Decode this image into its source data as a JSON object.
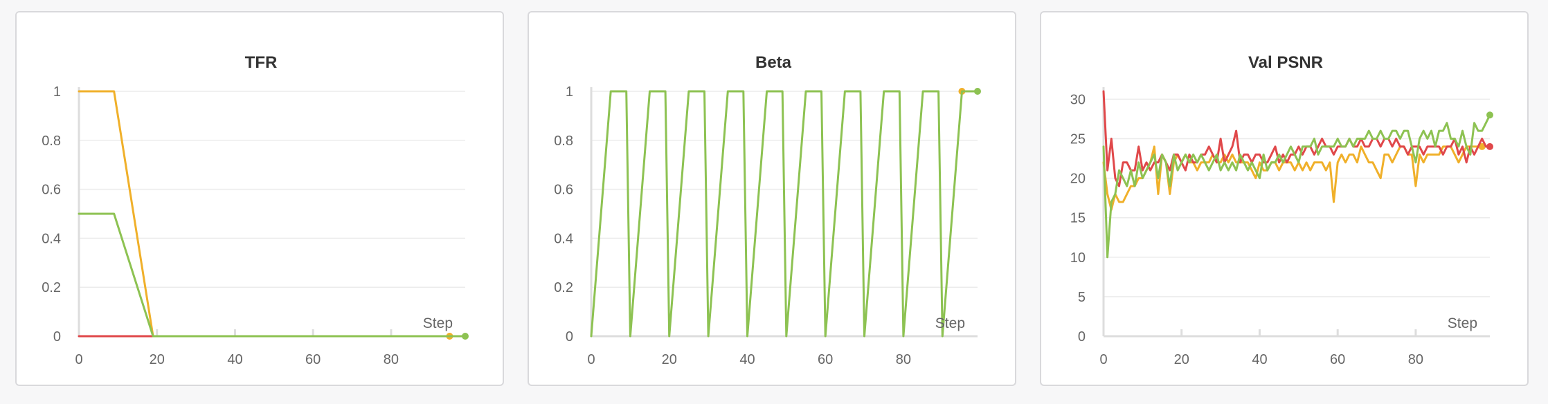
{
  "colors": {
    "red": "#e0484a",
    "orange": "#f0b02a",
    "green": "#8dc252"
  },
  "chart_data": [
    {
      "type": "line",
      "title": "TFR",
      "xlabel": "Step",
      "ylabel": "",
      "xlim": [
        0,
        99
      ],
      "ylim": [
        0,
        1
      ],
      "xticks": [
        "0",
        "20",
        "40",
        "60",
        "80"
      ],
      "yticks": [
        "0",
        "0.2",
        "0.4",
        "0.6",
        "0.8",
        "1"
      ],
      "grid": true,
      "series": [
        {
          "color": "#e0484a",
          "x": [
            0,
            99
          ],
          "y": [
            0,
            0
          ]
        },
        {
          "color": "#f0b02a",
          "x": [
            0,
            9,
            19,
            95
          ],
          "y": [
            1,
            1,
            0,
            0
          ],
          "end_marker": true
        },
        {
          "color": "#8dc252",
          "x": [
            0,
            9,
            19,
            99
          ],
          "y": [
            0.5,
            0.5,
            0,
            0
          ],
          "end_marker": true
        }
      ]
    },
    {
      "type": "line",
      "title": "Beta",
      "xlabel": "Step",
      "ylabel": "",
      "xlim": [
        0,
        99
      ],
      "ylim": [
        0,
        1
      ],
      "xticks": [
        "0",
        "20",
        "40",
        "60",
        "80"
      ],
      "yticks": [
        "0",
        "0.2",
        "0.4",
        "0.6",
        "0.8",
        "1"
      ],
      "grid": true,
      "series": [
        {
          "color": "#f0b02a",
          "x": [
            95
          ],
          "y": [
            1
          ],
          "end_marker": true
        },
        {
          "color": "#8dc252",
          "x": [
            0,
            5,
            9,
            10,
            15,
            19,
            20,
            25,
            29,
            30,
            35,
            39,
            40,
            45,
            49,
            50,
            55,
            59,
            60,
            65,
            69,
            70,
            75,
            79,
            80,
            85,
            89,
            90,
            95,
            99
          ],
          "y": [
            0,
            1,
            1,
            0,
            1,
            1,
            0,
            1,
            1,
            0,
            1,
            1,
            0,
            1,
            1,
            0,
            1,
            1,
            0,
            1,
            1,
            0,
            1,
            1,
            0,
            1,
            1,
            0,
            1,
            1
          ],
          "end_marker": true
        }
      ]
    },
    {
      "type": "line",
      "title": "Val PSNR",
      "xlabel": "Step",
      "ylabel": "",
      "xlim": [
        0,
        99
      ],
      "ylim": [
        0,
        31
      ],
      "xticks": [
        "0",
        "20",
        "40",
        "60",
        "80"
      ],
      "yticks": [
        "0",
        "5",
        "10",
        "15",
        "20",
        "25",
        "30"
      ],
      "grid": true,
      "series": [
        {
          "color": "#f0b02a",
          "x": [
            0,
            1,
            2,
            3,
            4,
            5,
            6,
            7,
            8,
            9,
            10,
            11,
            12,
            13,
            14,
            15,
            16,
            17,
            18,
            19,
            20,
            21,
            22,
            23,
            24,
            25,
            26,
            27,
            28,
            29,
            30,
            31,
            32,
            33,
            34,
            35,
            36,
            37,
            38,
            39,
            40,
            41,
            42,
            43,
            44,
            45,
            46,
            47,
            48,
            49,
            50,
            51,
            52,
            53,
            54,
            55,
            56,
            57,
            58,
            59,
            60,
            61,
            62,
            63,
            64,
            65,
            66,
            67,
            68,
            69,
            70,
            71,
            72,
            73,
            74,
            75,
            76,
            77,
            78,
            79,
            80,
            81,
            82,
            83,
            84,
            85,
            86,
            87,
            88,
            89,
            90,
            91,
            92,
            93,
            94,
            95,
            96,
            97
          ],
          "y": [
            22,
            18,
            16,
            18,
            17,
            17,
            18,
            19,
            19,
            20,
            20,
            21,
            22,
            24,
            18,
            23,
            22,
            18,
            22,
            23,
            22,
            23,
            22,
            22,
            21,
            22,
            22,
            22,
            23,
            22,
            22,
            23,
            22,
            23,
            22,
            22,
            22,
            22,
            21,
            20,
            22,
            21,
            21,
            22,
            22,
            21,
            22,
            22,
            22,
            21,
            22,
            21,
            22,
            21,
            22,
            22,
            22,
            21,
            22,
            17,
            22,
            23,
            22,
            23,
            23,
            22,
            24,
            23,
            22,
            22,
            21,
            20,
            23,
            23,
            22,
            23,
            24,
            24,
            23,
            23,
            19,
            23,
            22,
            23,
            23,
            23,
            23,
            24,
            24,
            24,
            23,
            22,
            23,
            24,
            24,
            24,
            24,
            24
          ],
          "end_marker": true
        },
        {
          "color": "#e0484a",
          "x": [
            0,
            1,
            2,
            3,
            4,
            5,
            6,
            7,
            8,
            9,
            10,
            11,
            12,
            13,
            14,
            15,
            16,
            17,
            18,
            19,
            20,
            21,
            22,
            23,
            24,
            25,
            26,
            27,
            28,
            29,
            30,
            31,
            32,
            33,
            34,
            35,
            36,
            37,
            38,
            39,
            40,
            41,
            42,
            43,
            44,
            45,
            46,
            47,
            48,
            49,
            50,
            51,
            52,
            53,
            54,
            55,
            56,
            57,
            58,
            59,
            60,
            61,
            62,
            63,
            64,
            65,
            66,
            67,
            68,
            69,
            70,
            71,
            72,
            73,
            74,
            75,
            76,
            77,
            78,
            79,
            80,
            81,
            82,
            83,
            84,
            85,
            86,
            87,
            88,
            89,
            90,
            91,
            92,
            93,
            94,
            95,
            96,
            97,
            98,
            99
          ],
          "y": [
            31,
            21,
            25,
            20,
            19,
            22,
            22,
            21,
            21,
            24,
            21,
            22,
            21,
            22,
            22,
            23,
            22,
            21,
            23,
            23,
            22,
            21,
            23,
            22,
            22,
            23,
            23,
            24,
            23,
            22,
            25,
            22,
            23,
            24,
            26,
            22,
            23,
            23,
            22,
            23,
            23,
            22,
            22,
            23,
            24,
            22,
            23,
            22,
            23,
            23,
            24,
            23,
            24,
            24,
            23,
            24,
            25,
            24,
            24,
            23,
            24,
            24,
            24,
            25,
            24,
            24,
            25,
            24,
            24,
            25,
            25,
            24,
            25,
            25,
            24,
            25,
            24,
            24,
            23,
            24,
            24,
            24,
            23,
            24,
            24,
            24,
            24,
            23,
            24,
            24,
            25,
            23,
            24,
            22,
            24,
            23,
            24,
            25,
            24,
            24
          ],
          "end_marker": true
        },
        {
          "color": "#8dc252",
          "x": [
            0,
            1,
            2,
            3,
            4,
            5,
            6,
            7,
            8,
            9,
            10,
            11,
            12,
            13,
            14,
            15,
            16,
            17,
            18,
            19,
            20,
            21,
            22,
            23,
            24,
            25,
            26,
            27,
            28,
            29,
            30,
            31,
            32,
            33,
            34,
            35,
            36,
            37,
            38,
            39,
            40,
            41,
            42,
            43,
            44,
            45,
            46,
            47,
            48,
            49,
            50,
            51,
            52,
            53,
            54,
            55,
            56,
            57,
            58,
            59,
            60,
            61,
            62,
            63,
            64,
            65,
            66,
            67,
            68,
            69,
            70,
            71,
            72,
            73,
            74,
            75,
            76,
            77,
            78,
            79,
            80,
            81,
            82,
            83,
            84,
            85,
            86,
            87,
            88,
            89,
            90,
            91,
            92,
            93,
            94,
            95,
            96,
            97,
            98,
            99
          ],
          "y": [
            24,
            10,
            17,
            18,
            21,
            20,
            19,
            21,
            19,
            22,
            20,
            21,
            22,
            23,
            20,
            23,
            22,
            19,
            23,
            21,
            22,
            23,
            22,
            23,
            22,
            23,
            22,
            21,
            22,
            23,
            21,
            22,
            21,
            22,
            21,
            23,
            22,
            21,
            22,
            21,
            20,
            23,
            21,
            22,
            22,
            23,
            22,
            23,
            24,
            23,
            22,
            24,
            24,
            24,
            25,
            23,
            24,
            24,
            24,
            24,
            25,
            24,
            24,
            25,
            24,
            25,
            25,
            25,
            26,
            25,
            25,
            26,
            25,
            25,
            26,
            26,
            25,
            26,
            26,
            24,
            22,
            25,
            26,
            25,
            26,
            24,
            26,
            26,
            27,
            25,
            25,
            24,
            26,
            24,
            23,
            27,
            26,
            26,
            27,
            28
          ],
          "end_marker": true
        }
      ]
    }
  ]
}
